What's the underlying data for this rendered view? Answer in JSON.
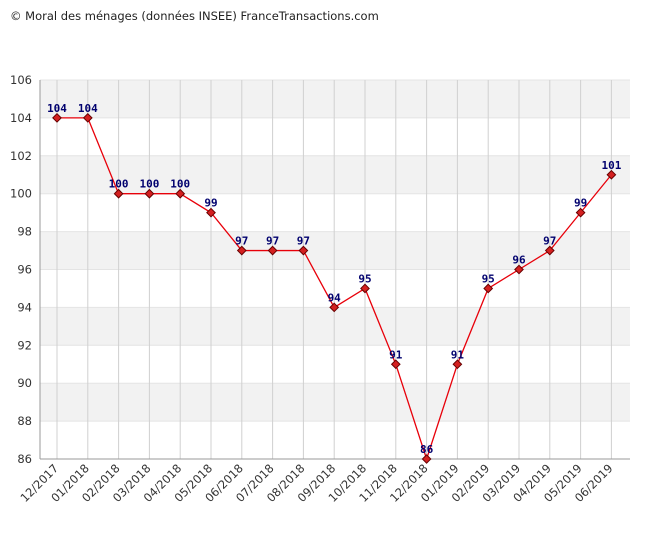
{
  "caption": "© Moral des ménages (données INSEE) FranceTransactions.com",
  "colors": {
    "line": "#e8000a",
    "marker_fill": "#d42020",
    "marker_stroke": "#660000",
    "label": "#00006e",
    "band": "#f2f2f2",
    "grid": "#d0d0d0"
  },
  "chart_data": {
    "type": "line",
    "title": "© Moral des ménages (données INSEE) FranceTransactions.com",
    "xlabel": "",
    "ylabel": "",
    "ylim": [
      86,
      106
    ],
    "yticks": [
      86,
      88,
      90,
      92,
      94,
      96,
      98,
      100,
      102,
      104,
      106
    ],
    "grid": true,
    "categories": [
      "12/2017",
      "01/2018",
      "02/2018",
      "03/2018",
      "04/2018",
      "05/2018",
      "06/2018",
      "07/2018",
      "08/2018",
      "09/2018",
      "10/2018",
      "11/2018",
      "12/2018",
      "01/2019",
      "02/2019",
      "03/2019",
      "04/2019",
      "05/2019",
      "06/2019"
    ],
    "series": [
      {
        "name": "Moral des ménages",
        "values": [
          104,
          104,
          100,
          100,
          100,
          99,
          97,
          97,
          97,
          94,
          95,
          91,
          86,
          91,
          95,
          96,
          97,
          99,
          101
        ]
      }
    ]
  }
}
